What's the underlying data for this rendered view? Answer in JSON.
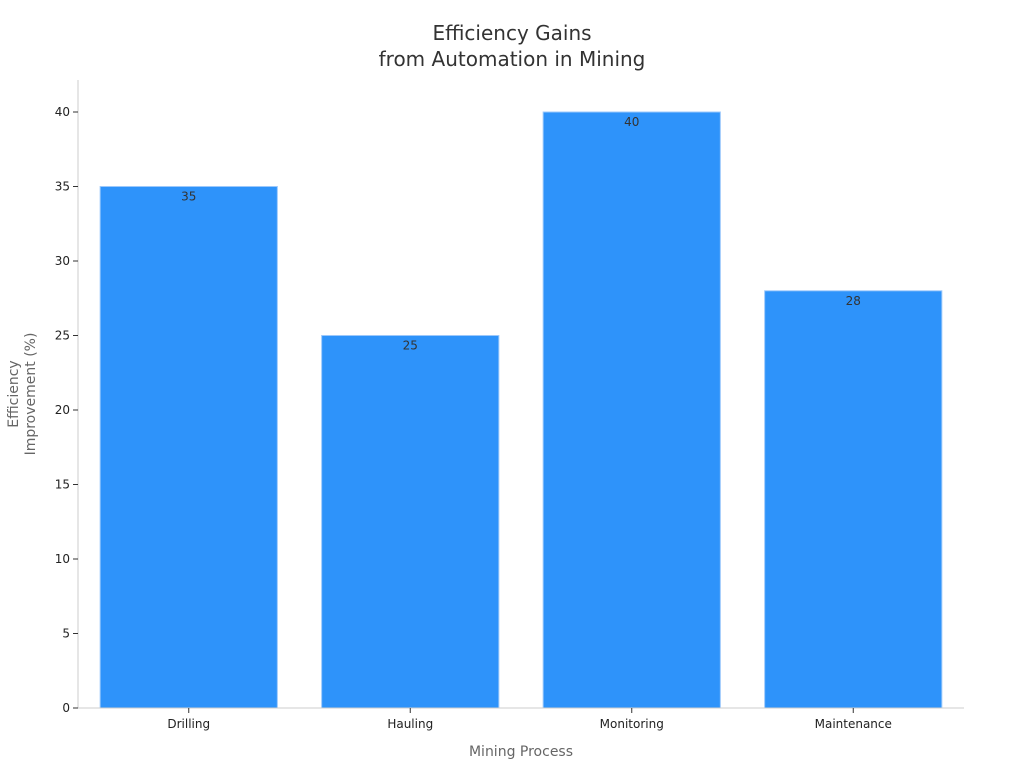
{
  "chart_data": {
    "type": "bar",
    "title_lines": [
      "Efficiency Gains",
      "from Automation in Mining"
    ],
    "xlabel": "Mining Process",
    "ylabel_lines": [
      "Efficiency",
      "Improvement (%)"
    ],
    "categories": [
      "Drilling",
      "Hauling",
      "Monitoring",
      "Maintenance"
    ],
    "values": [
      35,
      25,
      40,
      28
    ],
    "data_labels": [
      "35",
      "25",
      "40",
      "28"
    ],
    "ylim": [
      0,
      42
    ],
    "yticks": [
      0,
      5,
      10,
      15,
      20,
      25,
      30,
      35,
      40
    ],
    "ytick_labels": [
      "0",
      "5",
      "10",
      "15",
      "20",
      "25",
      "30",
      "35",
      "40"
    ],
    "bar_color": "#2e93fa",
    "grid": false,
    "legend": "none"
  }
}
